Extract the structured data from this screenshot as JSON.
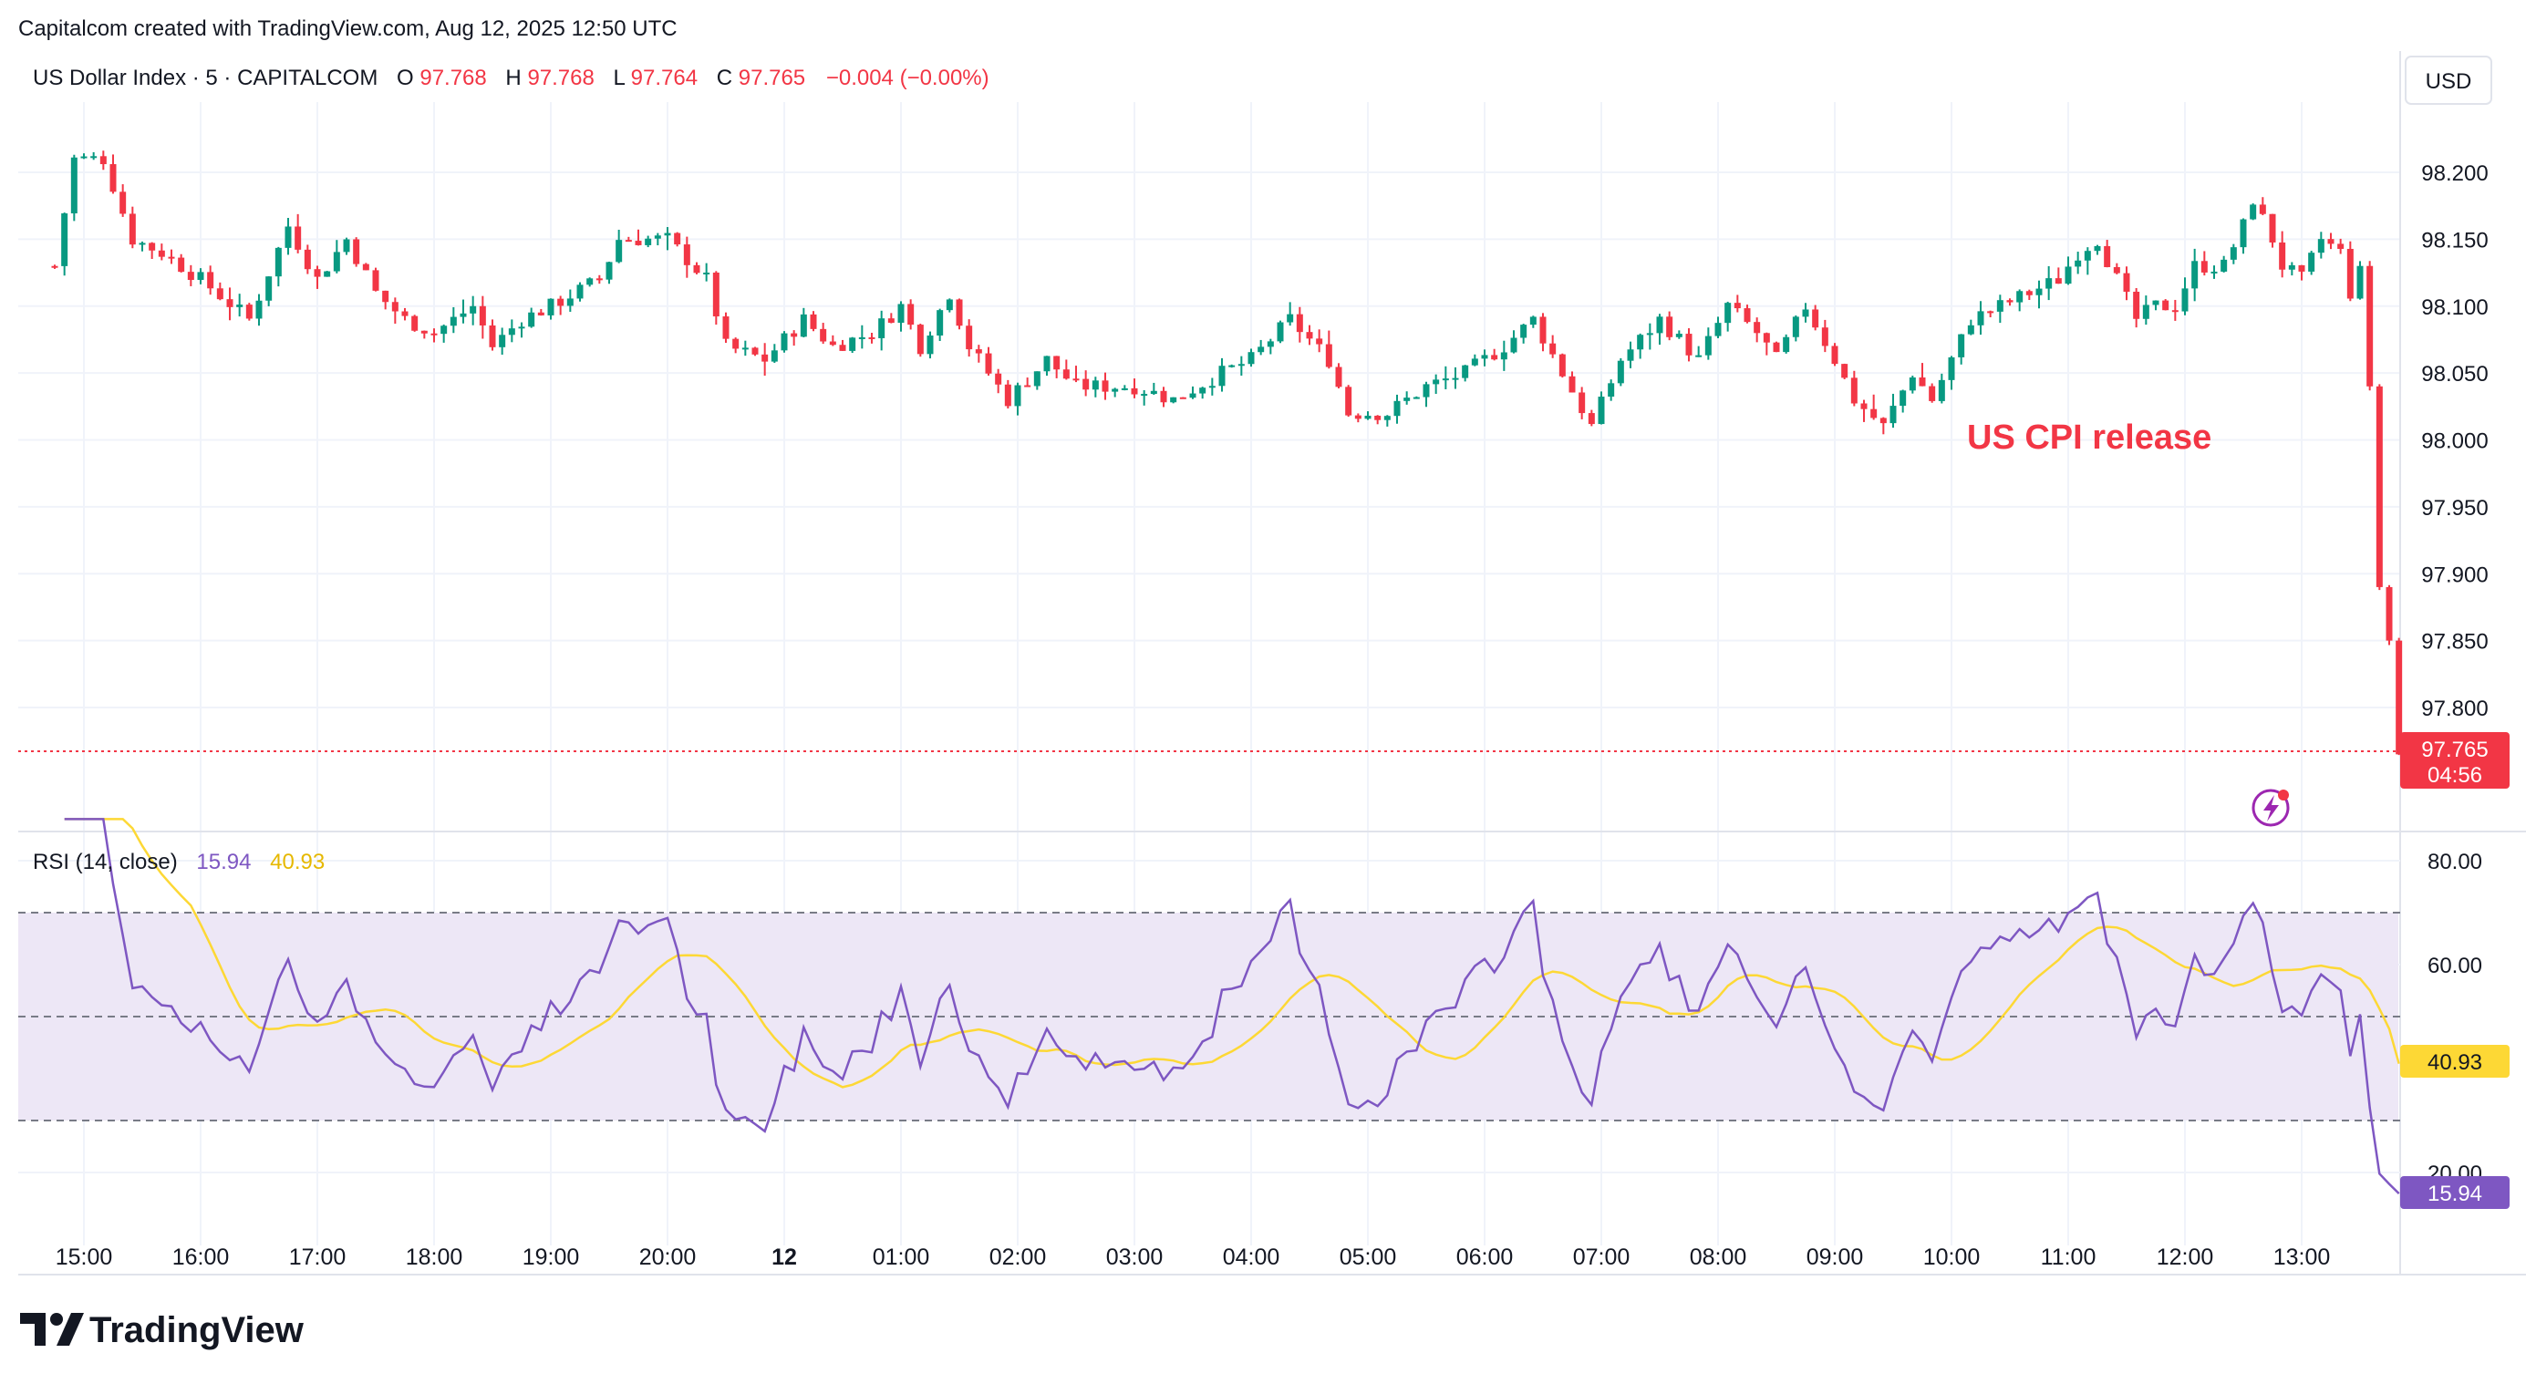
{
  "header": {
    "attribution": "Capitalcom created with TradingView.com, Aug 12, 2025 12:50 UTC"
  },
  "legend": {
    "symbol": "US Dollar Index · 5 · CAPITALCOM",
    "o_label": "O",
    "o_value": "97.768",
    "h_label": "H",
    "h_value": "97.768",
    "l_label": "L",
    "l_value": "97.764",
    "c_label": "C",
    "c_value": "97.765",
    "change": "−0.004 (−0.00%)"
  },
  "currency_button": "USD",
  "annotation": "US CPI release",
  "price_tag": {
    "value": "97.765",
    "countdown": "04:56"
  },
  "rsi_legend": {
    "title": "RSI (14, close)",
    "rsi_value": "15.94",
    "ma_value": "40.93"
  },
  "rsi_tags": {
    "ma": "40.93",
    "rsi": "15.94"
  },
  "footer": {
    "brand": "TradingView"
  },
  "colors": {
    "up": "#089981",
    "down": "#f23645",
    "rsi_line": "#7e57c2",
    "rsi_ma": "#fdd835",
    "rsi_band": "#ede7f6",
    "grid": "#f0f3fa",
    "text": "#131722"
  },
  "chart_data": [
    {
      "type": "candlestick",
      "title": "US Dollar Index · 5 · CAPITALCOM",
      "interval_minutes": 5,
      "ylim": [
        97.74,
        98.255
      ],
      "y_ticks": [
        "98.200",
        "98.150",
        "98.100",
        "98.050",
        "98.000",
        "97.950",
        "97.900",
        "97.850",
        "97.800"
      ],
      "x_ticks": [
        "15:00",
        "16:00",
        "17:00",
        "18:00",
        "19:00",
        "20:00",
        "12",
        "01:00",
        "02:00",
        "03:00",
        "04:00",
        "05:00",
        "06:00",
        "07:00",
        "08:00",
        "09:00",
        "10:00",
        "11:00",
        "12:00",
        "13:00"
      ],
      "last_close": 97.765,
      "anchors": [
        {
          "time": "14:45",
          "close": 98.13
        },
        {
          "time": "14:55",
          "close": 98.21
        },
        {
          "time": "15:10",
          "close": 98.21
        },
        {
          "time": "15:25",
          "close": 98.15
        },
        {
          "time": "15:40",
          "close": 98.14
        },
        {
          "time": "16:00",
          "close": 98.12
        },
        {
          "time": "16:25",
          "close": 98.09
        },
        {
          "time": "16:45",
          "close": 98.16
        },
        {
          "time": "17:00",
          "close": 98.12
        },
        {
          "time": "17:15",
          "close": 98.15
        },
        {
          "time": "17:30",
          "close": 98.11
        },
        {
          "time": "17:45",
          "close": 98.09
        },
        {
          "time": "18:00",
          "close": 98.08
        },
        {
          "time": "18:20",
          "close": 98.1
        },
        {
          "time": "18:30",
          "close": 98.07
        },
        {
          "time": "18:45",
          "close": 98.09
        },
        {
          "time": "19:00",
          "close": 98.1
        },
        {
          "time": "19:25",
          "close": 98.12
        },
        {
          "time": "19:35",
          "close": 98.15
        },
        {
          "time": "20:00",
          "close": 98.15
        },
        {
          "time": "20:20",
          "close": 98.12
        },
        {
          "time": "20:30",
          "close": 98.07
        },
        {
          "time": "20:50",
          "close": 98.06
        },
        {
          "time": "21:10",
          "close": 98.09
        },
        {
          "time": "21:25",
          "close": 98.07
        },
        {
          "time": "21:45",
          "close": 98.08
        },
        {
          "time": "22:00",
          "close": 98.1
        },
        {
          "time": "22:10",
          "close": 98.07
        },
        {
          "time": "22:25",
          "close": 98.11
        },
        {
          "time": "22:35",
          "close": 98.07
        },
        {
          "time": "22:55",
          "close": 98.03
        },
        {
          "time": "23:15",
          "close": 98.06
        },
        {
          "time": "23:30",
          "close": 98.04
        },
        {
          "time": "00:00",
          "close": 98.04
        },
        {
          "time": "00:20",
          "close": 98.03
        },
        {
          "time": "00:45",
          "close": 98.05
        },
        {
          "time": "01:00",
          "close": 98.06
        },
        {
          "time": "01:20",
          "close": 98.09
        },
        {
          "time": "01:40",
          "close": 98.06
        },
        {
          "time": "01:50",
          "close": 98.02
        },
        {
          "time": "02:10",
          "close": 98.02
        },
        {
          "time": "02:30",
          "close": 98.04
        },
        {
          "time": "02:50",
          "close": 98.05
        },
        {
          "time": "03:10",
          "close": 98.07
        },
        {
          "time": "03:25",
          "close": 98.09
        },
        {
          "time": "03:40",
          "close": 98.05
        },
        {
          "time": "03:55",
          "close": 98.01
        },
        {
          "time": "04:10",
          "close": 98.06
        },
        {
          "time": "04:30",
          "close": 98.09
        },
        {
          "time": "04:50",
          "close": 98.06
        },
        {
          "time": "05:05",
          "close": 98.1
        },
        {
          "time": "05:20",
          "close": 98.08
        },
        {
          "time": "05:30",
          "close": 98.06
        },
        {
          "time": "05:45",
          "close": 98.1
        },
        {
          "time": "06:00",
          "close": 98.06
        },
        {
          "time": "06:10",
          "close": 98.03
        },
        {
          "time": "06:25",
          "close": 98.01
        },
        {
          "time": "06:40",
          "close": 98.05
        },
        {
          "time": "06:50",
          "close": 98.03
        },
        {
          "time": "07:10",
          "close": 98.09
        },
        {
          "time": "07:25",
          "close": 98.1
        },
        {
          "time": "07:40",
          "close": 98.11
        },
        {
          "time": "07:55",
          "close": 98.12
        },
        {
          "time": "08:05",
          "close": 98.14
        },
        {
          "time": "08:15",
          "close": 98.15
        },
        {
          "time": "08:25",
          "close": 98.12
        },
        {
          "time": "08:35",
          "close": 98.09
        },
        {
          "time": "08:45",
          "close": 98.1
        },
        {
          "time": "08:55",
          "close": 98.1
        },
        {
          "time": "09:05",
          "close": 98.13
        },
        {
          "time": "09:20",
          "close": 98.13
        },
        {
          "time": "09:30",
          "close": 98.16
        },
        {
          "time": "09:35",
          "close": 98.18
        },
        {
          "time": "09:45",
          "close": 98.15
        },
        {
          "time": "09:50",
          "close": 98.13
        },
        {
          "time": "10:00",
          "close": 98.12
        },
        {
          "time": "10:10",
          "close": 98.15
        },
        {
          "time": "10:20",
          "close": 98.14
        },
        {
          "time": "10:25",
          "close": 98.11
        },
        {
          "time": "10:30",
          "close": 98.13
        },
        {
          "time": "10:35",
          "close": 98.04
        },
        {
          "time": "10:40",
          "close": 97.89
        },
        {
          "time": "10:45",
          "close": 97.85
        },
        {
          "time": "10:50",
          "close": 97.765
        }
      ]
    },
    {
      "type": "line",
      "title": "RSI (14, close)",
      "ylim": [
        10,
        90
      ],
      "y_ticks": [
        "80.00",
        "60.00",
        "20.00"
      ],
      "bands": {
        "upper": 70,
        "middle": 50,
        "lower": 30
      },
      "series": [
        {
          "name": "RSI",
          "last": 15.94
        },
        {
          "name": "MA",
          "last": 40.93
        }
      ]
    }
  ]
}
